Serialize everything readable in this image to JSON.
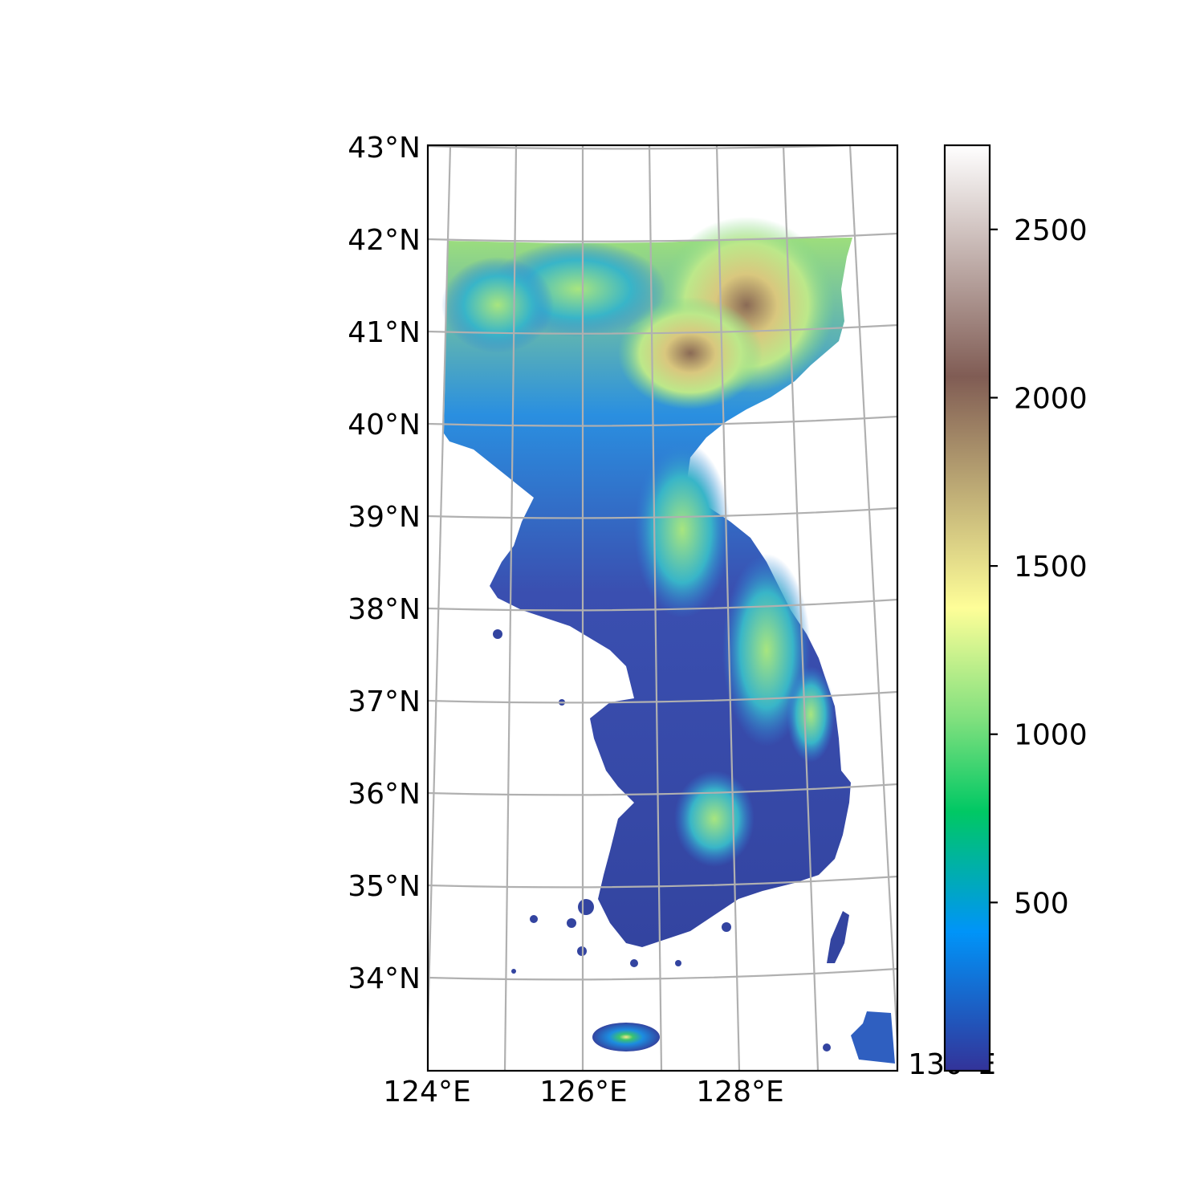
{
  "map": {
    "lat_labels": [
      "43°N",
      "42°N",
      "41°N",
      "40°N",
      "39°N",
      "38°N",
      "37°N",
      "36°N",
      "35°N",
      "34°N"
    ],
    "lon_labels": [
      "124°E",
      "126°E",
      "128°E",
      "130°E"
    ],
    "gridline_color": "#b0b0b0",
    "frame_color": "#000000",
    "land_extent": {
      "lon": [
        124.1,
        130.0
      ],
      "lat": [
        33.0,
        42.0
      ]
    }
  },
  "colorbar": {
    "ticks": [
      "500",
      "1000",
      "1500",
      "2000",
      "2500"
    ],
    "tick_values": [
      500,
      1000,
      1500,
      2000,
      2500
    ],
    "range": [
      0,
      2750
    ],
    "colormap": "terrain",
    "color_stops": [
      "#333399",
      "#0094f8",
      "#00c864",
      "#80e07e",
      "#fefe98",
      "#805c54",
      "#ffffff"
    ]
  }
}
